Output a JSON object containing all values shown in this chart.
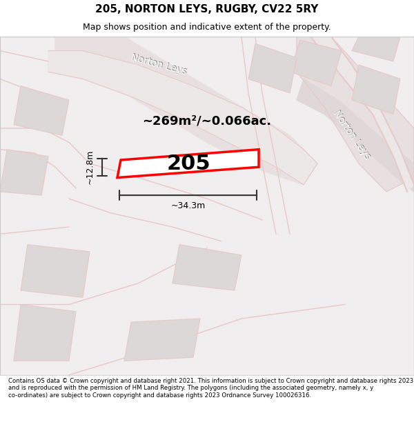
{
  "title": "205, NORTON LEYS, RUGBY, CV22 5RY",
  "subtitle": "Map shows position and indicative extent of the property.",
  "footer": "Contains OS data © Crown copyright and database right 2021. This information is subject to Crown copyright and database rights 2023 and is reproduced with the permission of HM Land Registry. The polygons (including the associated geometry, namely x, y co-ordinates) are subject to Crown copyright and database rights 2023 Ordnance Survey 100026316.",
  "area_label": "~269m²/~0.066ac.",
  "plot_number": "205",
  "dim_width": "~34.3m",
  "dim_height": "~12.8m",
  "bg_color": "#f5f5f5",
  "map_bg": "#f0eeee",
  "road_color": "#e8c8c8",
  "road_fill": "#e8d0d0",
  "building_color": "#d8d0d0",
  "plot_line_color": "#ff0000",
  "plot_fill": "#ffffff",
  "dim_line_color": "#333333",
  "norton_leys_road_label": "Norton Leys",
  "norton_leys_top_label": "Norton Leys"
}
